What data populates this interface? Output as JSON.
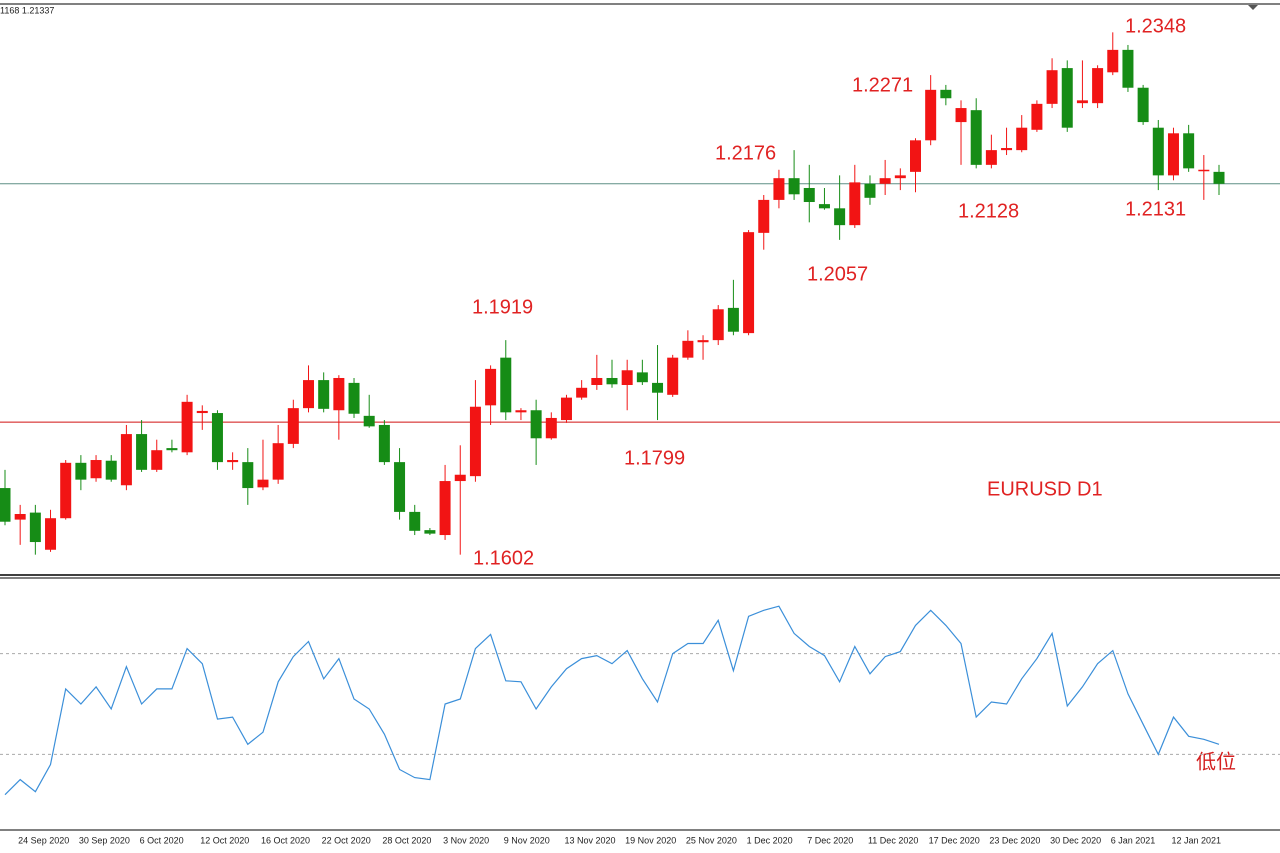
{
  "header_text": "1168 1.21337",
  "chart_data": [
    {
      "type": "candlestick",
      "title": "EURUSD D1",
      "categories": [
        null,
        "24 Sep 2020",
        null,
        null,
        null,
        "30 Sep 2020",
        null,
        null,
        null,
        "6 Oct 2020",
        null,
        null,
        null,
        "12 Oct 2020",
        null,
        null,
        null,
        "16 Oct 2020",
        null,
        null,
        null,
        "22 Oct 2020",
        null,
        null,
        null,
        "28 Oct 2020",
        null,
        null,
        null,
        "3 Nov 2020",
        null,
        null,
        null,
        "9 Nov 2020",
        null,
        null,
        null,
        "13 Nov 2020",
        null,
        null,
        null,
        "19 Nov 2020",
        null,
        null,
        null,
        "25 Nov 2020",
        null,
        null,
        null,
        "1 Dec 2020",
        null,
        null,
        null,
        "7 Dec 2020",
        null,
        null,
        null,
        "11 Dec 2020",
        null,
        null,
        null,
        "17 Dec 2020",
        null,
        null,
        null,
        "23 Dec 2020",
        null,
        null,
        null,
        "30 Dec 2020",
        null,
        null,
        null,
        "6 Jan 2021",
        null,
        null,
        null,
        "12 Jan 2021",
        null,
        null,
        null
      ],
      "open": [
        1.1702,
        1.1657,
        1.1667,
        1.1614,
        1.1659,
        1.1738,
        1.1716,
        1.1741,
        1.1706,
        1.1779,
        1.1728,
        1.1759,
        1.1753,
        1.1809,
        1.1809,
        1.1739,
        1.1739,
        1.1703,
        1.1714,
        1.1765,
        1.1816,
        1.1856,
        1.1813,
        1.1852,
        1.1805,
        1.1792,
        1.1739,
        1.1668,
        1.1642,
        1.1635,
        1.1712,
        1.1719,
        1.182,
        1.1888,
        1.181,
        1.1813,
        1.1773,
        1.1799,
        1.1831,
        1.1849,
        1.1859,
        1.1849,
        1.1867,
        1.1852,
        1.1835,
        1.1888,
        1.191,
        1.1913,
        1.1959,
        1.1923,
        1.2066,
        1.2113,
        1.2144,
        1.213,
        1.2107,
        1.2101,
        1.2077,
        1.2136,
        1.2136,
        1.2144,
        1.2153,
        1.2198,
        1.227,
        1.2224,
        1.2241,
        1.2163,
        1.2184,
        1.2184,
        1.2213,
        1.225,
        1.2301,
        1.2251,
        1.2251,
        1.2295,
        1.2327,
        1.2273,
        1.2216,
        1.2148,
        1.2208,
        1.2156,
        1.2153
      ],
      "high": [
        1.1728,
        1.1678,
        1.1678,
        1.1671,
        1.1742,
        1.1749,
        1.1749,
        1.1749,
        1.1792,
        1.1799,
        1.1771,
        1.1771,
        1.1835,
        1.182,
        1.1813,
        1.1753,
        1.1759,
        1.1771,
        1.1792,
        1.1828,
        1.1877,
        1.1867,
        1.1863,
        1.1859,
        1.1835,
        1.1799,
        1.1759,
        1.1678,
        1.1645,
        1.1735,
        1.1763,
        1.1856,
        1.1877,
        1.1913,
        1.1816,
        1.1828,
        1.181,
        1.1835,
        1.1856,
        1.1892,
        1.1885,
        1.1885,
        1.1885,
        1.1906,
        1.1892,
        1.1927,
        1.192,
        1.1963,
        1.1999,
        1.207,
        1.212,
        1.2156,
        1.2184,
        1.2163,
        1.213,
        1.2148,
        1.2163,
        1.2148,
        1.217,
        1.2158,
        1.2201,
        1.2291,
        1.2277,
        1.2255,
        1.2258,
        1.2206,
        1.2216,
        1.2234,
        1.2255,
        1.2315,
        1.2312,
        1.2312,
        1.2305,
        1.2352,
        1.2334,
        1.2277,
        1.2227,
        1.2216,
        1.222,
        1.2177,
        1.2163
      ],
      "low": [
        1.1649,
        1.1621,
        1.1607,
        1.1611,
        1.1657,
        1.1699,
        1.1711,
        1.1711,
        1.1699,
        1.1725,
        1.1725,
        1.1753,
        1.1749,
        1.1785,
        1.1728,
        1.1728,
        1.1678,
        1.1699,
        1.1708,
        1.1759,
        1.181,
        1.181,
        1.1771,
        1.1802,
        1.1788,
        1.1735,
        1.1657,
        1.1635,
        1.1635,
        1.1628,
        1.1607,
        1.1711,
        1.1792,
        1.1799,
        1.1799,
        1.1735,
        1.1771,
        1.1795,
        1.1828,
        1.1842,
        1.1845,
        1.1813,
        1.1849,
        1.1799,
        1.1832,
        1.1885,
        1.1885,
        1.1906,
        1.192,
        1.192,
        1.2042,
        1.2101,
        1.2113,
        1.2081,
        1.2099,
        1.2056,
        1.2073,
        1.2106,
        1.212,
        1.2127,
        1.2124,
        1.2191,
        1.2248,
        1.2163,
        1.2158,
        1.2158,
        1.2177,
        1.2181,
        1.221,
        1.2244,
        1.221,
        1.2244,
        1.2244,
        1.2291,
        1.2267,
        1.222,
        1.2127,
        1.2141,
        1.2153,
        1.2113,
        1.212
      ],
      "close": [
        1.1654,
        1.1665,
        1.1625,
        1.1659,
        1.1738,
        1.1714,
        1.1742,
        1.1714,
        1.1779,
        1.1728,
        1.1756,
        1.1756,
        1.1825,
        1.1812,
        1.1739,
        1.1742,
        1.1702,
        1.1714,
        1.1766,
        1.1816,
        1.1856,
        1.1815,
        1.1859,
        1.1808,
        1.179,
        1.1739,
        1.1668,
        1.1641,
        1.1637,
        1.1712,
        1.1721,
        1.1818,
        1.1872,
        1.181,
        1.1813,
        1.1773,
        1.1802,
        1.1831,
        1.1845,
        1.1859,
        1.185,
        1.187,
        1.1853,
        1.1838,
        1.1888,
        1.1912,
        1.1913,
        1.1957,
        1.1925,
        1.2067,
        1.2113,
        1.2144,
        1.2121,
        1.211,
        1.2101,
        1.2077,
        1.2138,
        1.2116,
        1.2144,
        1.2148,
        1.2198,
        1.227,
        1.2258,
        1.2244,
        1.2163,
        1.2184,
        1.2187,
        1.2216,
        1.225,
        1.2298,
        1.2216,
        1.2255,
        1.2301,
        1.2327,
        1.2273,
        1.2224,
        1.2148,
        1.2208,
        1.2158,
        1.2156,
        1.2136
      ],
      "up_color": "#f21414",
      "down_color": "#168c16",
      "ylim": [
        1.1578,
        1.2391
      ],
      "hlines": [
        {
          "value": 1.2136,
          "color": "#5f8f86"
        },
        {
          "value": 1.1796,
          "color": "#d01010"
        }
      ],
      "annotations": [
        "1.2348",
        "1.2271",
        "1.2176",
        "1.2128",
        "1.2131",
        "1.2057",
        "1.1919",
        "1.1799",
        "1.1602"
      ]
    },
    {
      "type": "line",
      "color": "#3b8fd9",
      "values": [
        14,
        20,
        15.2,
        26,
        56,
        50,
        56.8,
        48,
        64.8,
        50,
        56,
        56,
        72,
        66,
        44,
        44.8,
        34,
        38.8,
        58.8,
        68.8,
        74.8,
        60,
        68,
        52,
        48,
        38,
        24,
        20.8,
        20,
        50,
        52,
        72,
        77.6,
        59.2,
        58.8,
        48,
        56.8,
        64,
        68,
        69.2,
        66,
        71.2,
        60,
        50.8,
        70,
        74,
        74,
        83.2,
        63.2,
        84.8,
        87.2,
        88.8,
        78,
        72.8,
        69.2,
        58.8,
        72.8,
        62,
        68.8,
        70.8,
        81.2,
        87.2,
        81.2,
        74,
        44.8,
        50.8,
        50,
        60,
        68,
        78,
        49.2,
        56.8,
        66,
        71.2,
        54,
        42,
        30,
        44.8,
        37.2,
        36,
        34
      ],
      "ylim": [
        0,
        100
      ],
      "levels": [
        70,
        30
      ],
      "annotation": "低位"
    }
  ]
}
